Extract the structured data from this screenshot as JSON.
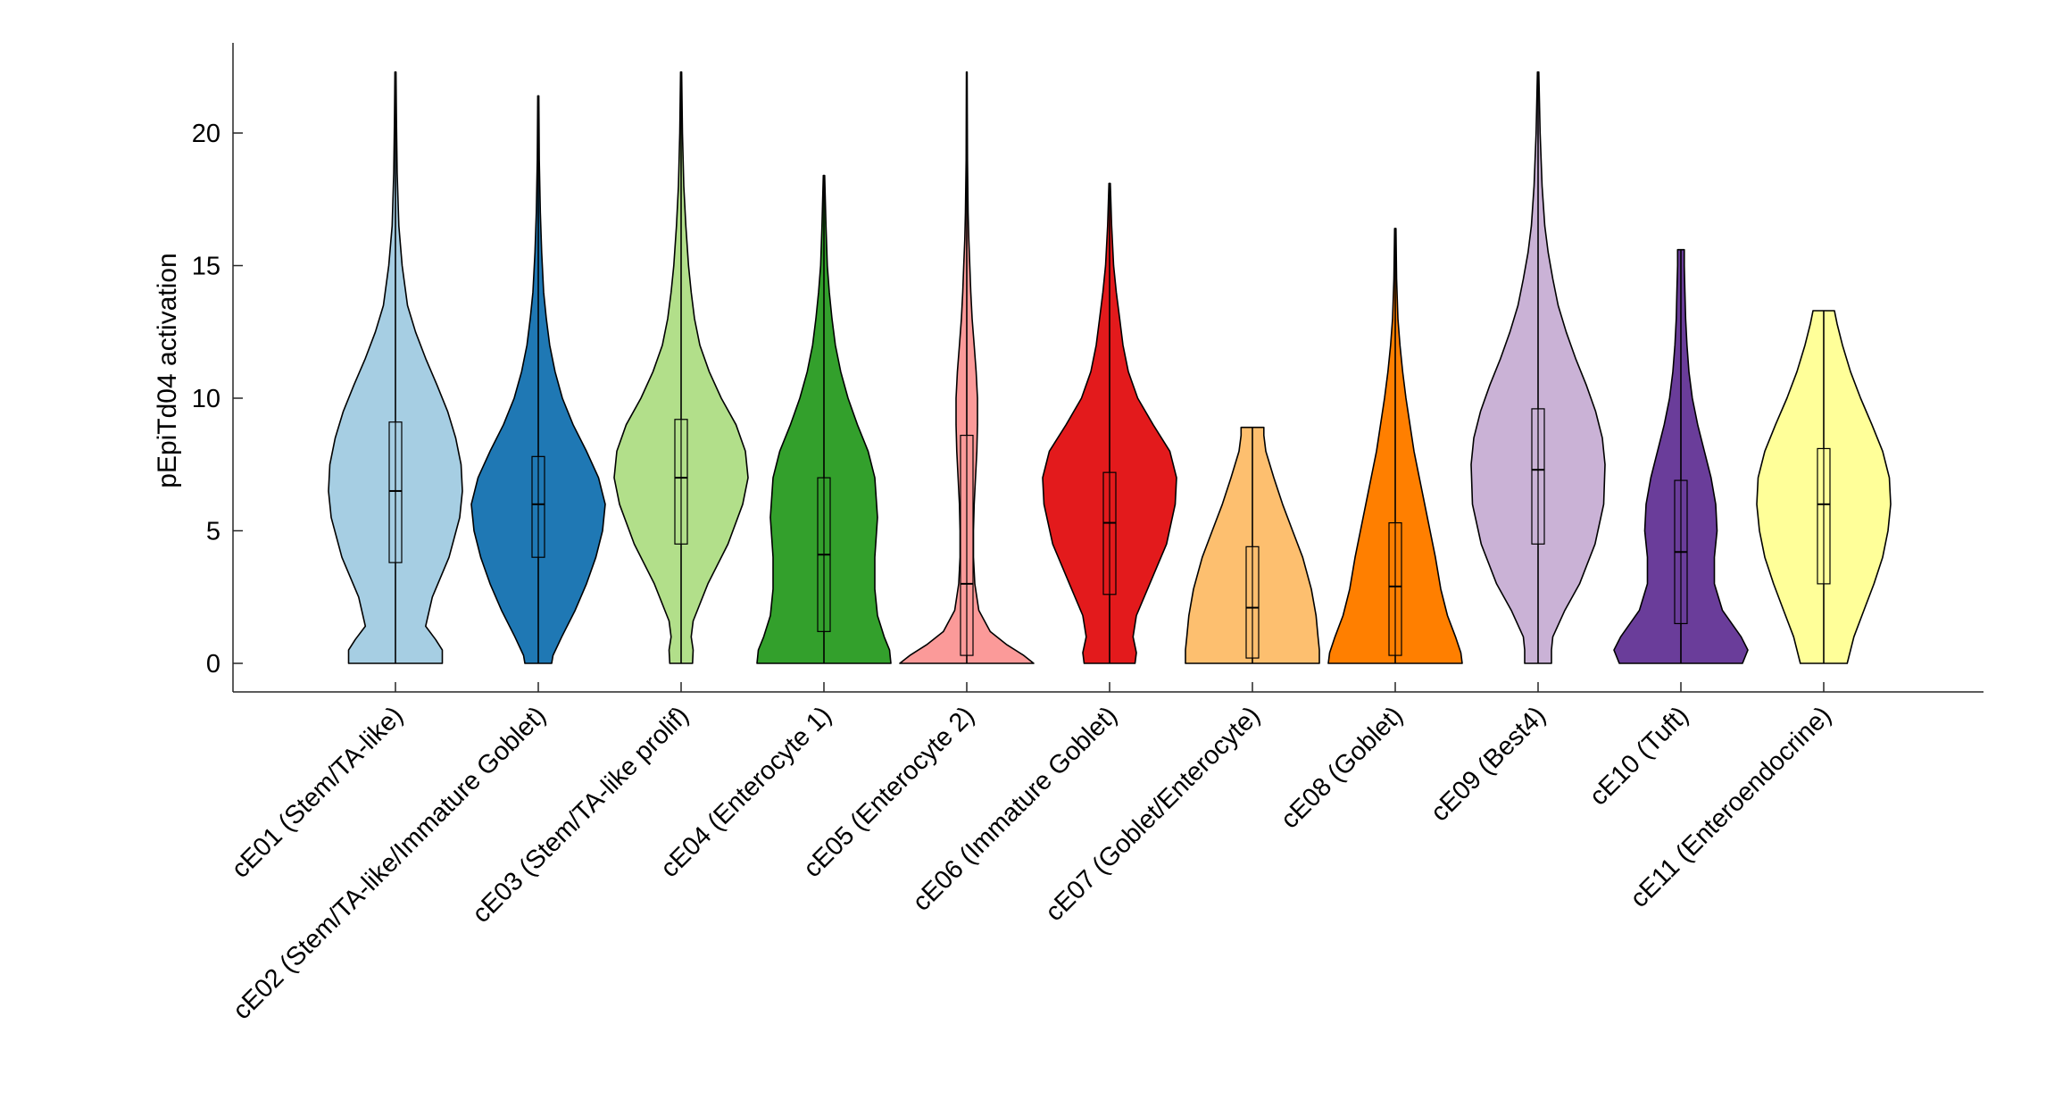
{
  "chart_data": {
    "type": "violin",
    "ylabel": "pEpiTd04 activation",
    "xlabel": "",
    "ylim": [
      -1.1,
      23.4
    ],
    "yticks": [
      0,
      5,
      10,
      15,
      20
    ],
    "grid": false,
    "categories": [
      "cE01 (Stem/TA-like)",
      "cE02 (Stem/TA-like/Immature Goblet)",
      "cE03 (Stem/TA-like prolif)",
      "cE04 (Enterocyte 1)",
      "cE05 (Enterocyte 2)",
      "cE06 (Immature Goblet)",
      "cE07 (Goblet/Enterocyte)",
      "cE08 (Goblet)",
      "cE09 (Best4)",
      "cE10 (Tuft)",
      "cE11 (Enteroendocrine)"
    ],
    "series": [
      {
        "color": "#a6cee3",
        "min": 0,
        "q1": 3.8,
        "median": 6.5,
        "q3": 9.1,
        "max": 22.3,
        "density": [
          [
            0,
            0.7
          ],
          [
            0.5,
            0.7
          ],
          [
            0.9,
            0.6
          ],
          [
            1.4,
            0.45
          ],
          [
            2.5,
            0.55
          ],
          [
            4,
            0.8
          ],
          [
            5.5,
            0.96
          ],
          [
            6.5,
            1.0
          ],
          [
            7.5,
            0.98
          ],
          [
            8.5,
            0.9
          ],
          [
            9.5,
            0.78
          ],
          [
            10.5,
            0.62
          ],
          [
            11.5,
            0.45
          ],
          [
            12.5,
            0.3
          ],
          [
            13.5,
            0.18
          ],
          [
            15,
            0.1
          ],
          [
            16.5,
            0.05
          ],
          [
            18.5,
            0.025
          ],
          [
            20.5,
            0.015
          ],
          [
            22.3,
            0.008
          ]
        ]
      },
      {
        "color": "#1f78b4",
        "min": 0,
        "q1": 4.0,
        "median": 6.0,
        "q3": 7.8,
        "max": 21.4,
        "density": [
          [
            0,
            0.2
          ],
          [
            0.3,
            0.22
          ],
          [
            1,
            0.35
          ],
          [
            2,
            0.55
          ],
          [
            3,
            0.72
          ],
          [
            4,
            0.86
          ],
          [
            5,
            0.96
          ],
          [
            6,
            1.0
          ],
          [
            7,
            0.9
          ],
          [
            8,
            0.72
          ],
          [
            9,
            0.52
          ],
          [
            10,
            0.36
          ],
          [
            11,
            0.25
          ],
          [
            12,
            0.17
          ],
          [
            13,
            0.12
          ],
          [
            14,
            0.08
          ],
          [
            15.5,
            0.05
          ],
          [
            17,
            0.03
          ],
          [
            19,
            0.015
          ],
          [
            21.4,
            0.008
          ]
        ]
      },
      {
        "color": "#b2df8a",
        "min": 0,
        "q1": 4.5,
        "median": 7.0,
        "q3": 9.2,
        "max": 22.3,
        "density": [
          [
            0,
            0.17
          ],
          [
            0.5,
            0.18
          ],
          [
            1,
            0.15
          ],
          [
            1.6,
            0.18
          ],
          [
            3,
            0.4
          ],
          [
            4.5,
            0.7
          ],
          [
            6,
            0.92
          ],
          [
            7,
            1.0
          ],
          [
            8,
            0.96
          ],
          [
            9,
            0.82
          ],
          [
            10,
            0.6
          ],
          [
            11,
            0.42
          ],
          [
            12,
            0.28
          ],
          [
            13,
            0.2
          ],
          [
            14,
            0.15
          ],
          [
            15,
            0.11
          ],
          [
            16.5,
            0.07
          ],
          [
            18,
            0.04
          ],
          [
            20,
            0.02
          ],
          [
            22.3,
            0.008
          ]
        ]
      },
      {
        "color": "#33a02c",
        "min": 0,
        "q1": 1.2,
        "median": 4.1,
        "q3": 7.0,
        "max": 18.4,
        "density": [
          [
            0,
            1.0
          ],
          [
            0.5,
            0.98
          ],
          [
            1,
            0.9
          ],
          [
            1.8,
            0.8
          ],
          [
            2.8,
            0.76
          ],
          [
            4,
            0.76
          ],
          [
            5.5,
            0.8
          ],
          [
            7,
            0.76
          ],
          [
            8,
            0.66
          ],
          [
            9,
            0.5
          ],
          [
            10,
            0.36
          ],
          [
            11,
            0.25
          ],
          [
            12,
            0.17
          ],
          [
            13,
            0.12
          ],
          [
            14,
            0.08
          ],
          [
            15,
            0.05
          ],
          [
            16.5,
            0.03
          ],
          [
            18.4,
            0.01
          ]
        ]
      },
      {
        "color": "#fb9a99",
        "min": 0,
        "q1": 0.3,
        "median": 3.0,
        "q3": 8.6,
        "max": 22.3,
        "density": [
          [
            0,
            1.0
          ],
          [
            0.3,
            0.85
          ],
          [
            0.7,
            0.6
          ],
          [
            1.2,
            0.35
          ],
          [
            2,
            0.18
          ],
          [
            3,
            0.12
          ],
          [
            4,
            0.1
          ],
          [
            5,
            0.1
          ],
          [
            6,
            0.11
          ],
          [
            7,
            0.13
          ],
          [
            8,
            0.15
          ],
          [
            9,
            0.16
          ],
          [
            10,
            0.16
          ],
          [
            11,
            0.14
          ],
          [
            12,
            0.11
          ],
          [
            13,
            0.08
          ],
          [
            14,
            0.06
          ],
          [
            15,
            0.045
          ],
          [
            16,
            0.03
          ],
          [
            17,
            0.02
          ],
          [
            19,
            0.01
          ],
          [
            22.3,
            0.005
          ]
        ]
      },
      {
        "color": "#e31a1c",
        "min": 0,
        "q1": 2.6,
        "median": 5.3,
        "q3": 7.2,
        "max": 18.1,
        "density": [
          [
            0,
            0.38
          ],
          [
            0.4,
            0.4
          ],
          [
            1,
            0.35
          ],
          [
            1.8,
            0.4
          ],
          [
            3,
            0.6
          ],
          [
            4.5,
            0.85
          ],
          [
            6,
            0.98
          ],
          [
            7,
            1.0
          ],
          [
            8,
            0.9
          ],
          [
            9,
            0.65
          ],
          [
            10,
            0.42
          ],
          [
            11,
            0.28
          ],
          [
            12,
            0.2
          ],
          [
            13,
            0.15
          ],
          [
            14,
            0.1
          ],
          [
            15,
            0.06
          ],
          [
            16.5,
            0.03
          ],
          [
            18.1,
            0.01
          ]
        ]
      },
      {
        "color": "#fdbf6f",
        "min": 0,
        "q1": 0.2,
        "median": 2.1,
        "q3": 4.4,
        "max": 8.9,
        "density": [
          [
            0,
            1.0
          ],
          [
            0.5,
            1.0
          ],
          [
            1,
            0.98
          ],
          [
            1.8,
            0.95
          ],
          [
            2.8,
            0.88
          ],
          [
            4,
            0.75
          ],
          [
            5,
            0.6
          ],
          [
            6,
            0.45
          ],
          [
            7,
            0.32
          ],
          [
            8,
            0.2
          ],
          [
            8.6,
            0.17
          ],
          [
            8.9,
            0.17
          ]
        ]
      },
      {
        "color": "#ff7f00",
        "min": 0,
        "q1": 0.3,
        "median": 2.9,
        "q3": 5.3,
        "max": 16.4,
        "density": [
          [
            0,
            1.0
          ],
          [
            0.4,
            0.98
          ],
          [
            1,
            0.9
          ],
          [
            1.8,
            0.78
          ],
          [
            2.8,
            0.68
          ],
          [
            4,
            0.6
          ],
          [
            5,
            0.52
          ],
          [
            6,
            0.44
          ],
          [
            7,
            0.36
          ],
          [
            8,
            0.28
          ],
          [
            9,
            0.22
          ],
          [
            10,
            0.16
          ],
          [
            11,
            0.11
          ],
          [
            12,
            0.07
          ],
          [
            13,
            0.04
          ],
          [
            14.5,
            0.02
          ],
          [
            16.4,
            0.01
          ]
        ]
      },
      {
        "color": "#cab2d6",
        "min": 0,
        "q1": 4.5,
        "median": 7.3,
        "q3": 9.6,
        "max": 22.3,
        "density": [
          [
            0,
            0.2
          ],
          [
            0.5,
            0.2
          ],
          [
            1,
            0.22
          ],
          [
            2,
            0.4
          ],
          [
            3,
            0.62
          ],
          [
            4.5,
            0.85
          ],
          [
            6,
            0.98
          ],
          [
            7.5,
            1.0
          ],
          [
            8.5,
            0.96
          ],
          [
            9.5,
            0.86
          ],
          [
            10.5,
            0.72
          ],
          [
            11.5,
            0.56
          ],
          [
            12.5,
            0.42
          ],
          [
            13.5,
            0.3
          ],
          [
            14.5,
            0.22
          ],
          [
            15.5,
            0.15
          ],
          [
            16.5,
            0.1
          ],
          [
            18,
            0.06
          ],
          [
            20,
            0.03
          ],
          [
            22.3,
            0.01
          ]
        ]
      },
      {
        "color": "#6a3d9a",
        "min": 0,
        "q1": 1.5,
        "median": 4.2,
        "q3": 6.9,
        "max": 15.6,
        "density": [
          [
            0,
            0.92
          ],
          [
            0.5,
            1.0
          ],
          [
            1,
            0.9
          ],
          [
            2,
            0.62
          ],
          [
            3,
            0.5
          ],
          [
            4,
            0.5
          ],
          [
            5,
            0.54
          ],
          [
            6,
            0.52
          ],
          [
            7,
            0.45
          ],
          [
            8,
            0.35
          ],
          [
            9,
            0.25
          ],
          [
            10,
            0.17
          ],
          [
            11,
            0.12
          ],
          [
            12,
            0.09
          ],
          [
            13,
            0.07
          ],
          [
            14,
            0.06
          ],
          [
            15,
            0.05
          ],
          [
            15.6,
            0.05
          ]
        ]
      },
      {
        "color": "#ffff99",
        "min": 0,
        "q1": 3.0,
        "median": 6.0,
        "q3": 8.1,
        "max": 13.3,
        "density": [
          [
            0,
            0.35
          ],
          [
            1,
            0.45
          ],
          [
            2,
            0.6
          ],
          [
            3,
            0.75
          ],
          [
            4,
            0.88
          ],
          [
            5,
            0.96
          ],
          [
            6,
            1.0
          ],
          [
            7,
            0.98
          ],
          [
            8,
            0.88
          ],
          [
            9,
            0.72
          ],
          [
            10,
            0.55
          ],
          [
            11,
            0.4
          ],
          [
            12,
            0.28
          ],
          [
            12.8,
            0.2
          ],
          [
            13.3,
            0.16
          ]
        ]
      }
    ]
  }
}
